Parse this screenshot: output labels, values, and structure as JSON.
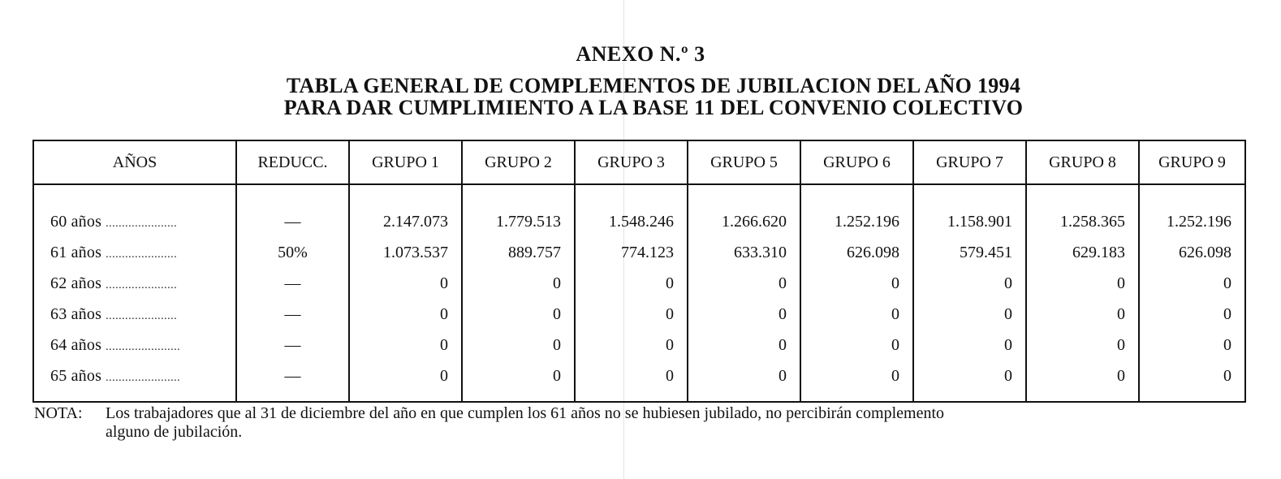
{
  "annex_title": "ANEXO N.º 3",
  "title_line_1": "TABLA GENERAL DE COMPLEMENTOS DE JUBILACION DEL AÑO 1994",
  "title_line_2": "PARA DAR CUMPLIMIENTO A LA BASE 11 DEL CONVENIO COLECTIVO",
  "table": {
    "headers": [
      "AÑOS",
      "REDUCC.",
      "GRUPO 1",
      "GRUPO 2",
      "GRUPO 3",
      "GRUPO 5",
      "GRUPO 6",
      "GRUPO 7",
      "GRUPO 8",
      "GRUPO 9"
    ],
    "rows": [
      {
        "age": "60 años",
        "leader": "......................",
        "reduction": "—",
        "values": [
          "2.147.073",
          "1.779.513",
          "1.548.246",
          "1.266.620",
          "1.252.196",
          "1.158.901",
          "1.258.365",
          "1.252.196"
        ]
      },
      {
        "age": "61 años",
        "leader": "......................",
        "reduction": "50%",
        "values": [
          "1.073.537",
          "889.757",
          "774.123",
          "633.310",
          "626.098",
          "579.451",
          "629.183",
          "626.098"
        ]
      },
      {
        "age": "62 años",
        "leader": "......................",
        "reduction": "—",
        "values": [
          "0",
          "0",
          "0",
          "0",
          "0",
          "0",
          "0",
          "0"
        ]
      },
      {
        "age": "63 años",
        "leader": "......................",
        "reduction": "—",
        "values": [
          "0",
          "0",
          "0",
          "0",
          "0",
          "0",
          "0",
          "0"
        ]
      },
      {
        "age": "64 años",
        "leader": ".......................",
        "reduction": "—",
        "values": [
          "0",
          "0",
          "0",
          "0",
          "0",
          "0",
          "0",
          "0"
        ]
      },
      {
        "age": "65 años",
        "leader": ".......................",
        "reduction": "—",
        "values": [
          "0",
          "0",
          "0",
          "0",
          "0",
          "0",
          "0",
          "0"
        ]
      }
    ]
  },
  "note": {
    "label": "NOTA:",
    "line_1": "Los trabajadores que al 31 de diciembre del año en que cumplen los 61 años no se hubiesen jubilado, no percibirán complemento",
    "line_2": "alguno de jubilación."
  }
}
